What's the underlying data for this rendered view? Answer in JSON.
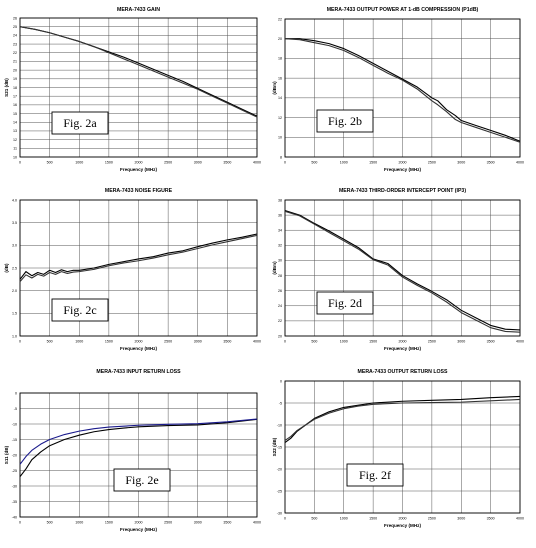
{
  "chart_data": [
    {
      "type": "line",
      "title": "MERA-7433   GAIN",
      "xlabel": "Frequency (MHz)",
      "ylabel": "S21 (dB)",
      "xlim": [
        0,
        4000
      ],
      "ylim": [
        10,
        26
      ],
      "xticks": [
        "0",
        "500",
        "1000",
        "1500",
        "2000",
        "2500",
        "3000",
        "3500",
        "4000"
      ],
      "yticks": [
        "10",
        "11",
        "12",
        "13",
        "14",
        "15",
        "16",
        "17",
        "18",
        "19",
        "20",
        "21",
        "22",
        "23",
        "24",
        "25",
        "26"
      ],
      "grid": true,
      "annotation": "Fig. 2a",
      "series": [
        {
          "x": [
            0,
            250,
            500,
            750,
            1000,
            1250,
            1500,
            1750,
            2000,
            2250,
            2500,
            2750,
            3000,
            3250,
            3500,
            3750,
            4000
          ],
          "y": [
            25.0,
            24.7,
            24.3,
            23.8,
            23.3,
            22.7,
            22.1,
            21.5,
            20.8,
            20.1,
            19.4,
            18.7,
            17.9,
            17.1,
            16.3,
            15.5,
            14.7
          ]
        },
        {
          "x": [
            0,
            250,
            500,
            750,
            1000,
            1250,
            1500,
            1750,
            2000,
            2250,
            2500,
            2750,
            3000,
            3250,
            3500,
            3750,
            4000
          ],
          "y": [
            25.0,
            24.7,
            24.3,
            23.8,
            23.3,
            22.7,
            22.0,
            21.3,
            20.6,
            19.9,
            19.2,
            18.5,
            17.8,
            17.0,
            16.2,
            15.4,
            14.6
          ]
        }
      ]
    },
    {
      "type": "line",
      "title": "MERA-7433   OUTPUT POWER AT 1-dB COMPRESSION (P1dB)",
      "xlabel": "Frequency (MHz)",
      "ylabel": "(dBm)",
      "xlim": [
        0,
        4000
      ],
      "ylim": [
        8,
        22
      ],
      "xticks": [
        "0",
        "500",
        "1000",
        "1500",
        "2000",
        "2500",
        "3000",
        "3500",
        "4000"
      ],
      "yticks": [
        "8",
        "10",
        "12",
        "14",
        "16",
        "18",
        "20",
        "22"
      ],
      "grid": true,
      "annotation": "Fig. 2b",
      "series": [
        {
          "x": [
            0,
            250,
            500,
            750,
            1000,
            1250,
            1500,
            1750,
            2000,
            2250,
            2500,
            2600,
            2750,
            2900,
            3000,
            3250,
            3500,
            3750,
            4000
          ],
          "y": [
            20.0,
            20.0,
            19.8,
            19.5,
            19.0,
            18.3,
            17.5,
            16.7,
            15.9,
            15.1,
            14.0,
            13.7,
            12.8,
            12.2,
            11.7,
            11.2,
            10.7,
            10.2,
            9.6
          ]
        },
        {
          "x": [
            0,
            250,
            500,
            750,
            1000,
            1250,
            1500,
            1750,
            2000,
            2250,
            2500,
            2600,
            2750,
            2900,
            3000,
            3250,
            3500,
            3750,
            4000
          ],
          "y": [
            20.0,
            19.9,
            19.6,
            19.3,
            18.8,
            18.1,
            17.3,
            16.5,
            15.8,
            14.9,
            13.7,
            13.3,
            12.6,
            11.8,
            11.5,
            11.0,
            10.5,
            10.0,
            9.5
          ]
        }
      ]
    },
    {
      "type": "line",
      "title": "MERA-7433   NOISE FIGURE",
      "xlabel": "Frequency (MHz)",
      "ylabel": "(dB)",
      "xlim": [
        0,
        4000
      ],
      "ylim": [
        1.0,
        4.0
      ],
      "xticks": [
        "0",
        "500",
        "1000",
        "1500",
        "2000",
        "2500",
        "3000",
        "3500",
        "4000"
      ],
      "yticks": [
        "1.0",
        "1.5",
        "2.0",
        "2.5",
        "3.0",
        "3.5",
        "4.0"
      ],
      "grid": true,
      "annotation": "Fig. 2c",
      "series": [
        {
          "x": [
            0,
            100,
            200,
            300,
            400,
            500,
            600,
            700,
            800,
            900,
            1000,
            1250,
            1500,
            1750,
            2000,
            2250,
            2500,
            2750,
            3000,
            3250,
            3500,
            3750,
            4000
          ],
          "y": [
            2.25,
            2.42,
            2.33,
            2.4,
            2.36,
            2.45,
            2.4,
            2.46,
            2.42,
            2.45,
            2.45,
            2.5,
            2.58,
            2.64,
            2.7,
            2.75,
            2.83,
            2.88,
            2.97,
            3.05,
            3.12,
            3.18,
            3.25
          ]
        },
        {
          "x": [
            0,
            100,
            200,
            300,
            400,
            500,
            600,
            700,
            800,
            900,
            1000,
            1250,
            1500,
            1750,
            2000,
            2250,
            2500,
            2750,
            3000,
            3250,
            3500,
            3750,
            4000
          ],
          "y": [
            2.2,
            2.35,
            2.28,
            2.36,
            2.32,
            2.4,
            2.36,
            2.42,
            2.38,
            2.41,
            2.42,
            2.47,
            2.55,
            2.61,
            2.66,
            2.72,
            2.79,
            2.85,
            2.93,
            3.01,
            3.08,
            3.15,
            3.22
          ]
        }
      ]
    },
    {
      "type": "line",
      "title": "MERA-7433   THIRD-ORDER INTERCEPT POINT (IP3)",
      "xlabel": "Frequency (MHz)",
      "ylabel": "(dBm)",
      "xlim": [
        0,
        4000
      ],
      "ylim": [
        20,
        38
      ],
      "xticks": [
        "0",
        "500",
        "1000",
        "1500",
        "2000",
        "2500",
        "3000",
        "3500",
        "4000"
      ],
      "yticks": [
        "20",
        "22",
        "24",
        "26",
        "28",
        "30",
        "32",
        "34",
        "36",
        "38"
      ],
      "grid": true,
      "annotation": "Fig. 2d",
      "series": [
        {
          "x": [
            0,
            250,
            500,
            750,
            1000,
            1250,
            1500,
            1750,
            2000,
            2250,
            2500,
            2750,
            3000,
            3250,
            3500,
            3750,
            4000
          ],
          "y": [
            36.6,
            36.0,
            34.9,
            33.9,
            32.8,
            31.7,
            30.2,
            29.6,
            28.0,
            26.9,
            25.9,
            24.8,
            23.4,
            22.4,
            21.4,
            20.9,
            20.8
          ]
        },
        {
          "x": [
            0,
            250,
            500,
            750,
            1000,
            1250,
            1500,
            1750,
            2000,
            2250,
            2500,
            2750,
            3000,
            3250,
            3500,
            3750,
            4000
          ],
          "y": [
            36.5,
            35.9,
            34.8,
            33.7,
            32.6,
            31.5,
            30.1,
            29.4,
            27.8,
            26.7,
            25.7,
            24.5,
            23.1,
            22.1,
            21.1,
            20.6,
            20.5
          ]
        }
      ]
    },
    {
      "type": "line",
      "title": "MERA-7433   INPUT RETURN LOSS",
      "xlabel": "Frequency (MHz)",
      "ylabel": "S11 (dB)",
      "xlim": [
        0,
        4000
      ],
      "ylim": [
        -40,
        0
      ],
      "xticks": [
        "0",
        "500",
        "1000",
        "1500",
        "2000",
        "2500",
        "3000",
        "3500",
        "4000"
      ],
      "yticks": [
        "0",
        "-5",
        "-10",
        "-15",
        "-20",
        "-25",
        "-30",
        "-35",
        "-40"
      ],
      "grid": true,
      "annotation": "Fig. 2e",
      "series": [
        {
          "x": [
            0,
            100,
            200,
            350,
            500,
            750,
            1000,
            1250,
            1500,
            1750,
            2000,
            2500,
            3000,
            3500,
            4000
          ],
          "y": [
            -27.0,
            -24.5,
            -21.5,
            -19.0,
            -17.0,
            -15.0,
            -13.6,
            -12.5,
            -11.8,
            -11.3,
            -10.9,
            -10.5,
            -10.3,
            -9.6,
            -8.5
          ]
        },
        {
          "x": [
            0,
            100,
            200,
            350,
            500,
            750,
            1000,
            1250,
            1500,
            1750,
            2000,
            2500,
            3000,
            3500,
            4000
          ],
          "y": [
            -23.0,
            -20.5,
            -18.5,
            -16.5,
            -15.0,
            -13.4,
            -12.3,
            -11.5,
            -11.0,
            -10.7,
            -10.4,
            -10.1,
            -9.9,
            -9.3,
            -8.4
          ]
        }
      ]
    },
    {
      "type": "line",
      "title": "MERA-7433   OUTPUT RETURN LOSS",
      "xlabel": "Frequency (MHz)",
      "ylabel": "S22 (dB)",
      "xlim": [
        0,
        4000
      ],
      "ylim": [
        -30,
        0
      ],
      "xticks": [
        "0",
        "500",
        "1000",
        "1500",
        "2000",
        "2500",
        "3000",
        "3500",
        "4000"
      ],
      "yticks": [
        "0",
        "-5",
        "-10",
        "-15",
        "-20",
        "-25",
        "-30"
      ],
      "grid": true,
      "annotation": "Fig. 2f",
      "series": [
        {
          "x": [
            0,
            100,
            200,
            350,
            500,
            750,
            1000,
            1250,
            1500,
            2000,
            2500,
            3000,
            3500,
            4000
          ],
          "y": [
            -14.0,
            -13.0,
            -11.5,
            -10.0,
            -8.5,
            -7.0,
            -6.0,
            -5.5,
            -5.0,
            -4.6,
            -4.4,
            -4.2,
            -3.8,
            -3.5
          ]
        },
        {
          "x": [
            0,
            100,
            200,
            350,
            500,
            750,
            1000,
            1250,
            1500,
            2000,
            2500,
            3000,
            3500,
            4000
          ],
          "y": [
            -13.5,
            -12.6,
            -11.3,
            -10.0,
            -8.7,
            -7.3,
            -6.3,
            -5.7,
            -5.3,
            -5.0,
            -4.9,
            -4.8,
            -4.5,
            -4.2
          ]
        }
      ]
    }
  ],
  "colors": {
    "axis": "#000000",
    "grid": "#555555",
    "series_default": [
      "#000000",
      "#333333"
    ],
    "series_input_return_loss": [
      "#000000",
      "#1a1a8c"
    ]
  }
}
